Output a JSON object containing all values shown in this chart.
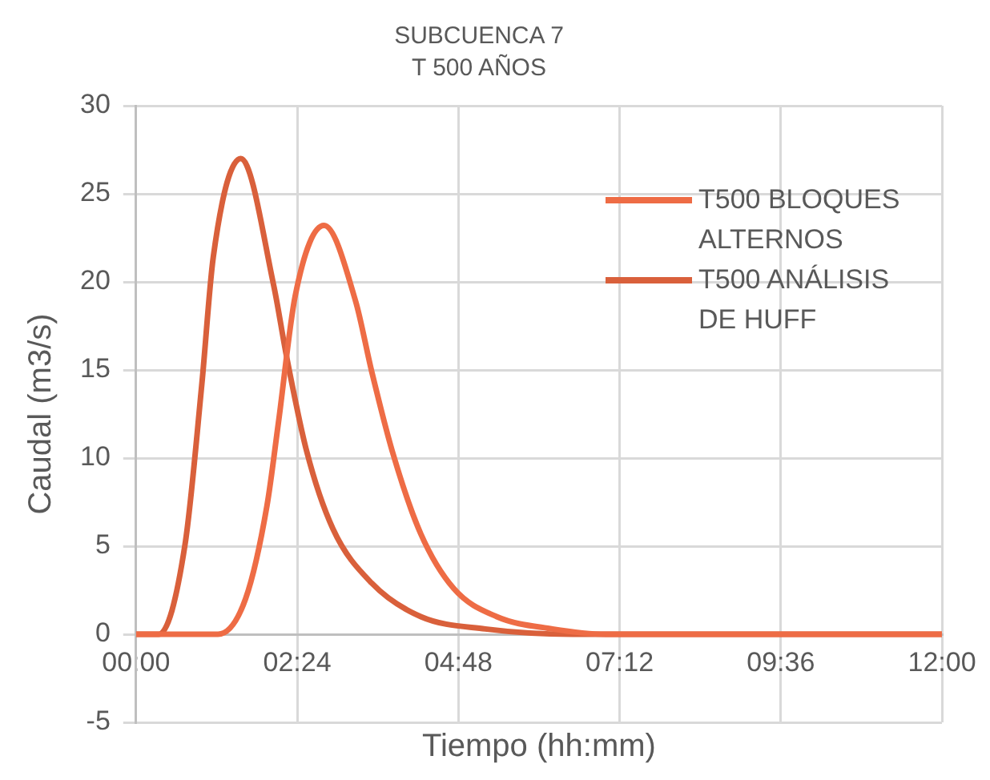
{
  "chart_data": {
    "type": "line",
    "title": "SUBCUENCA 7",
    "subtitle": "T 500 AÑOS",
    "xlabel": "Tiempo (hh:mm)",
    "ylabel": "Caudal (m3/s)",
    "xlim": [
      0,
      12
    ],
    "xticks": [
      {
        "value": 0,
        "label": "00:00"
      },
      {
        "value": 2.4,
        "label": "02:24"
      },
      {
        "value": 4.8,
        "label": "04:48"
      },
      {
        "value": 7.2,
        "label": "07:12"
      },
      {
        "value": 9.6,
        "label": "09:36"
      },
      {
        "value": 12,
        "label": "12:00"
      }
    ],
    "ylim": [
      -5,
      30
    ],
    "yticks": [
      -5,
      0,
      5,
      10,
      15,
      20,
      25,
      30
    ],
    "grid": true,
    "legend": "top right",
    "marker": "none",
    "line_style": "solid",
    "series": [
      {
        "name": "T500 BLOQUES ALTERNOS",
        "color": "#ee6c45",
        "x": [
          0,
          1.22,
          1.63,
          1.95,
          2.12,
          2.37,
          2.8,
          3.27,
          3.51,
          3.83,
          4.24,
          4.73,
          5.37,
          6.2,
          7.0,
          12
        ],
        "values": [
          0,
          0,
          2.0,
          7.3,
          12.0,
          19.2,
          23.2,
          18.9,
          14.9,
          10.2,
          5.7,
          2.6,
          1.0,
          0.3,
          0,
          0
        ]
      },
      {
        "name": "T500 ANÁLISIS DE HUFF",
        "color": "#d9603b",
        "x": [
          0,
          0.34,
          0.73,
          0.98,
          1.15,
          1.56,
          2.05,
          2.24,
          2.54,
          2.93,
          3.51,
          4.24,
          5.2,
          6.5,
          12
        ],
        "values": [
          0,
          0,
          5.1,
          14.2,
          21.4,
          27.0,
          19.8,
          15.8,
          10.4,
          6.0,
          2.9,
          1.0,
          0.3,
          0,
          0
        ]
      }
    ]
  }
}
